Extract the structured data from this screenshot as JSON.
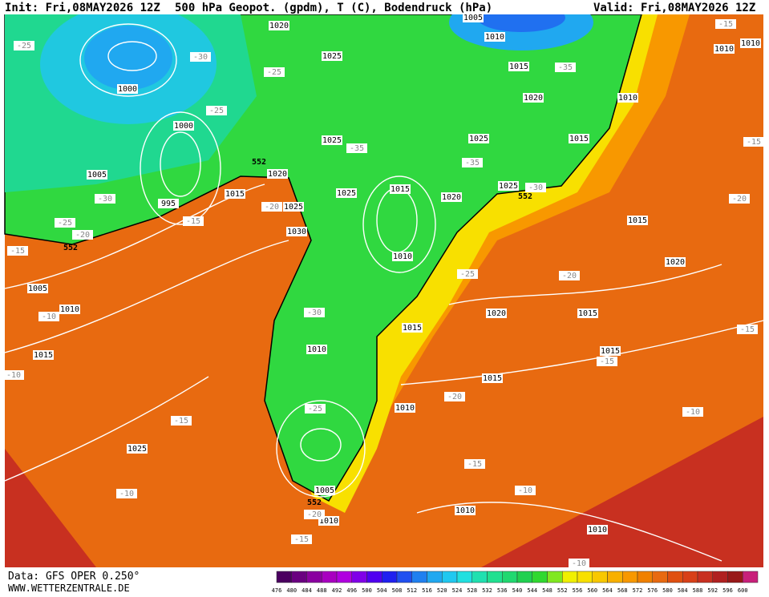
{
  "header": {
    "init": "Init: Fri,08MAY2026 12Z",
    "title": "500 hPa Geopot. (gpdm), T (C), Bodendruck (hPa)",
    "valid": "Valid: Fri,08MAY2026 12Z"
  },
  "footer": {
    "data": "Data: GFS OPER 0.250°",
    "site": "WWW.WETTERZENTRALE.DE"
  },
  "colorbar": {
    "labels": [
      476,
      480,
      484,
      488,
      492,
      496,
      500,
      504,
      508,
      512,
      516,
      520,
      524,
      528,
      532,
      536,
      540,
      544,
      548,
      552,
      556,
      560,
      564,
      568,
      572,
      576,
      580,
      584,
      588,
      592,
      596,
      600
    ],
    "colors": [
      "#4b0060",
      "#6a0080",
      "#8a00a0",
      "#a800c0",
      "#b000e0",
      "#8000e8",
      "#5000f0",
      "#2020f0",
      "#2050f0",
      "#2080f0",
      "#20a8f0",
      "#20c8f0",
      "#20e0e0",
      "#20e0b0",
      "#20e090",
      "#20d870",
      "#20d050",
      "#30d830",
      "#80e820",
      "#f0f000",
      "#f8e000",
      "#f8c800",
      "#f8b000",
      "#f89800",
      "#f08000",
      "#e86a10",
      "#e05010",
      "#d84018",
      "#c83020",
      "#b02020",
      "#981818",
      "#c8207a"
    ]
  },
  "map_labels": {
    "pressure": [
      "1020",
      "1005",
      "1010",
      "1015",
      "1020",
      "1010",
      "1010",
      "1010",
      "1000",
      "1000",
      "1025",
      "1025",
      "1025",
      "1015",
      "1005",
      "995",
      "1015",
      "1020",
      "1025",
      "1015",
      "1020",
      "1025",
      "1025",
      "1030",
      "1015",
      "1010",
      "1020",
      "1005",
      "1010",
      "1020",
      "1015",
      "1015",
      "1010",
      "1015",
      "1015",
      "1015",
      "1010",
      "1025",
      "1005",
      "1010",
      "1010",
      "1010"
    ],
    "temperature": [
      "-25",
      "-30",
      "-25",
      "-25",
      "-35",
      "-35",
      "-35",
      "-30",
      "-30",
      "-25",
      "-20",
      "-15",
      "-20",
      "-15",
      "-25",
      "-20",
      "-20",
      "-15",
      "-15",
      "-10",
      "-30",
      "-10",
      "-15",
      "-15",
      "-20",
      "-25",
      "-15",
      "-10",
      "-15",
      "-10",
      "-10",
      "-20",
      "-15",
      "-10"
    ],
    "geopotential": [
      "552",
      "552",
      "552",
      "552"
    ]
  }
}
